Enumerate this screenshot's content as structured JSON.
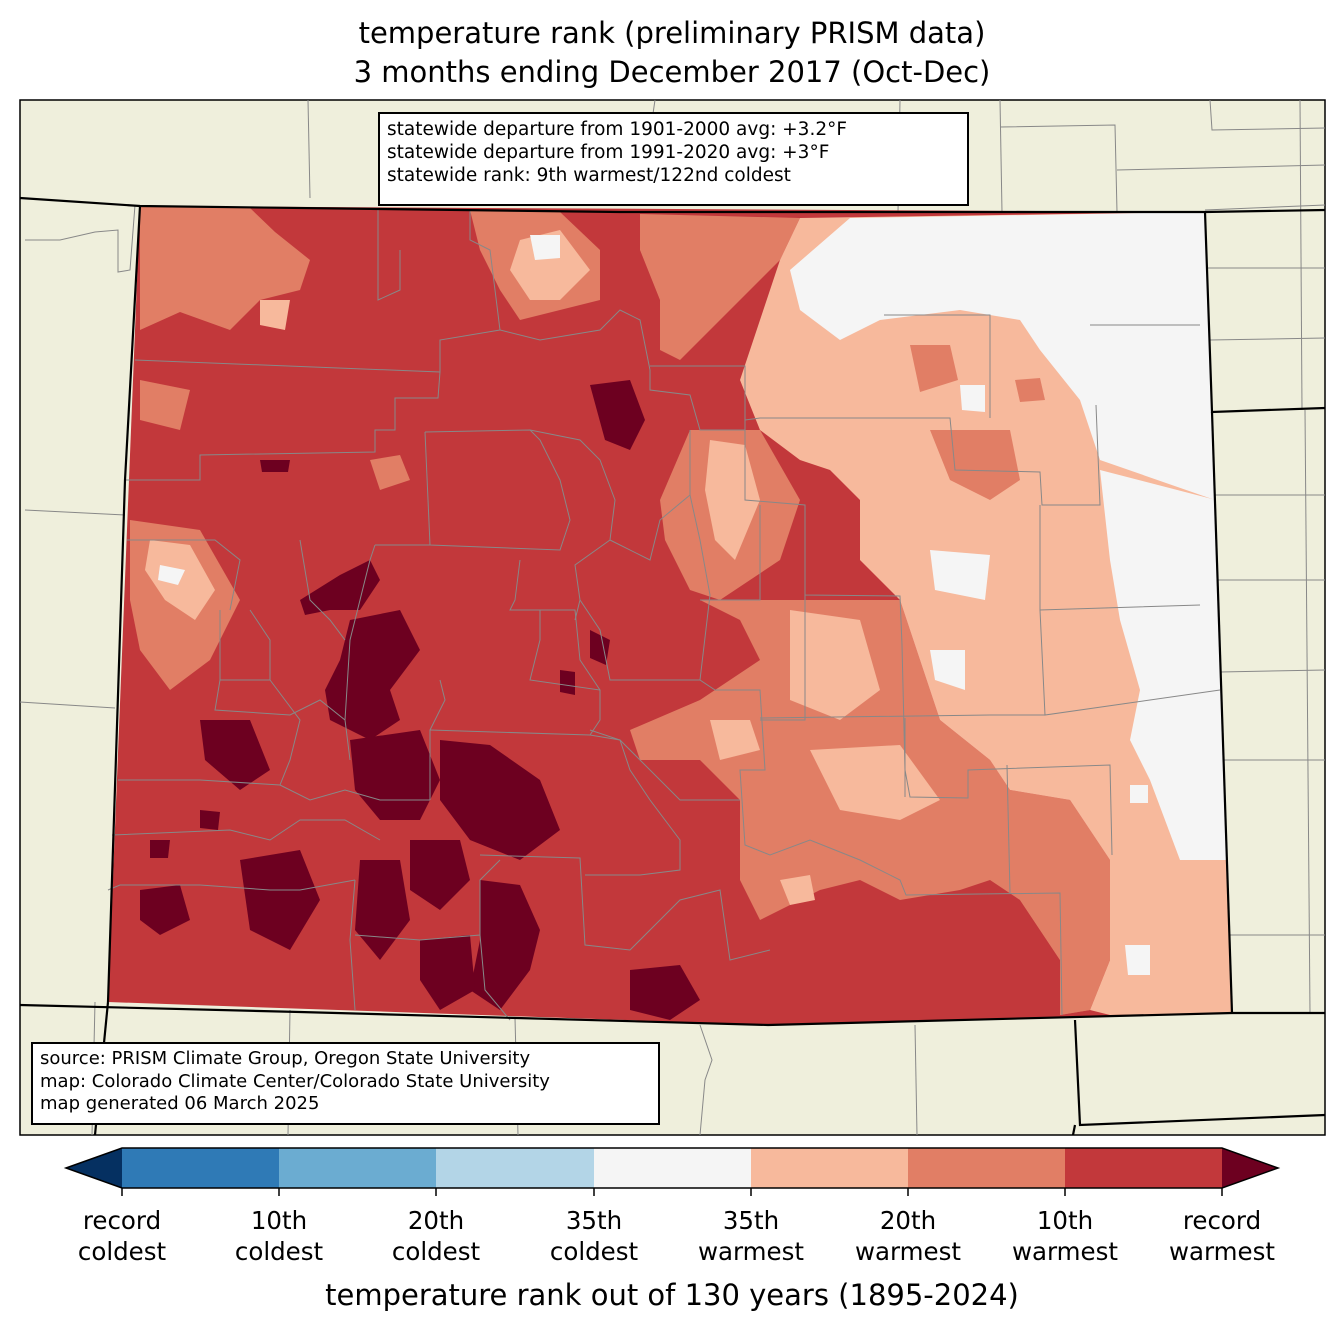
{
  "title": {
    "line1": "temperature rank (preliminary PRISM data)",
    "line2": "3 months ending December 2017 (Oct-Dec)"
  },
  "stats_box": {
    "line1": "statewide departure from 1901-2000 avg: +3.2°F",
    "line2": "statewide departure from 1991-2020 avg: +3°F",
    "line3": "statewide rank: 9th warmest/122nd coldest"
  },
  "source_box": {
    "line1": "source: PRISM Climate Group, Oregon State University",
    "line2": "map: Colorado Climate Center/Colorado State University",
    "line3": "map generated 06 March 2025"
  },
  "colorbar": {
    "label": "temperature rank out of 130 years (1895-2024)",
    "ticks": [
      {
        "line1": "record",
        "line2": "coldest"
      },
      {
        "line1": "10th",
        "line2": "coldest"
      },
      {
        "line1": "20th",
        "line2": "coldest"
      },
      {
        "line1": "35th",
        "line2": "coldest"
      },
      {
        "line1": "35th",
        "line2": "warmest"
      },
      {
        "line1": "20th",
        "line2": "warmest"
      },
      {
        "line1": "10th",
        "line2": "warmest"
      },
      {
        "line1": "record",
        "line2": "warmest"
      }
    ],
    "colors": {
      "record_coldest": "#053061",
      "coldest_10": "#2f7ab6",
      "coldest_20": "#6bacd1",
      "coldest_35": "#b3d5e7",
      "near_normal": "#f5f5f5",
      "warmest_35": "#f7b99c",
      "warmest_20": "#e17e65",
      "warmest_10": "#c2383b",
      "record_warmest": "#6d0020"
    }
  },
  "map_colors": {
    "land": "#efefdc",
    "county_lines": "#888888",
    "state_lines": "#000000"
  }
}
